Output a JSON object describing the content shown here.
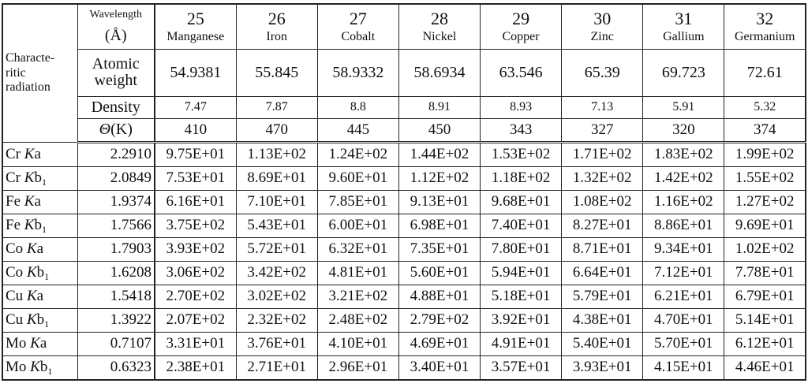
{
  "table": {
    "corner": [
      "Characte-",
      "ritic",
      "radiation"
    ],
    "wavelength_label": "Wavelength",
    "wavelength_unit": "(Å)",
    "atomic_weight_label": "Atomic weight",
    "density_label": "Density",
    "theta_symbol": "Θ",
    "theta_unit": "(K)",
    "elements": [
      {
        "number": "25",
        "name": "Manganese",
        "atomic_weight": "54.9381",
        "density": "7.47",
        "theta": "410"
      },
      {
        "number": "26",
        "name": "Iron",
        "atomic_weight": "55.845",
        "density": "7.87",
        "theta": "470"
      },
      {
        "number": "27",
        "name": "Cobalt",
        "atomic_weight": "58.9332",
        "density": "8.8",
        "theta": "445"
      },
      {
        "number": "28",
        "name": "Nickel",
        "atomic_weight": "58.6934",
        "density": "8.91",
        "theta": "450"
      },
      {
        "number": "29",
        "name": "Copper",
        "atomic_weight": "63.546",
        "density": "8.93",
        "theta": "343"
      },
      {
        "number": "30",
        "name": "Zinc",
        "atomic_weight": "65.39",
        "density": "7.13",
        "theta": "327"
      },
      {
        "number": "31",
        "name": "Gallium",
        "atomic_weight": "69.723",
        "density": "5.91",
        "theta": "320"
      },
      {
        "number": "32",
        "name": "Germanium",
        "atomic_weight": "72.61",
        "density": "5.32",
        "theta": "374"
      }
    ],
    "rows": [
      {
        "element": "Cr",
        "shell": "K",
        "line": "a",
        "wavelength": "2.2910",
        "values": [
          "9.75E+01",
          "1.13E+02",
          "1.24E+02",
          "1.44E+02",
          "1.53E+02",
          "1.71E+02",
          "1.83E+02",
          "1.99E+02"
        ]
      },
      {
        "element": "Cr",
        "shell": "K",
        "line": "b",
        "subscript": "1",
        "wavelength": "2.0849",
        "values": [
          "7.53E+01",
          "8.69E+01",
          "9.60E+01",
          "1.12E+02",
          "1.18E+02",
          "1.32E+02",
          "1.42E+02",
          "1.55E+02"
        ]
      },
      {
        "element": "Fe",
        "shell": "K",
        "line": "a",
        "wavelength": "1.9374",
        "values": [
          "6.16E+01",
          "7.10E+01",
          "7.85E+01",
          "9.13E+01",
          "9.68E+01",
          "1.08E+02",
          "1.16E+02",
          "1.27E+02"
        ]
      },
      {
        "element": "Fe",
        "shell": "K",
        "line": "b",
        "subscript": "1",
        "wavelength": "1.7566",
        "values": [
          "3.75E+02",
          "5.43E+01",
          "6.00E+01",
          "6.98E+01",
          "7.40E+01",
          "8.27E+01",
          "8.86E+01",
          "9.69E+01"
        ]
      },
      {
        "element": "Co",
        "shell": "K",
        "line": "a",
        "wavelength": "1.7903",
        "values": [
          "3.93E+02",
          "5.72E+01",
          "6.32E+01",
          "7.35E+01",
          "7.80E+01",
          "8.71E+01",
          "9.34E+01",
          "1.02E+02"
        ]
      },
      {
        "element": "Co",
        "shell": "K",
        "line": "b",
        "subscript": "1",
        "wavelength": "1.6208",
        "values": [
          "3.06E+02",
          "3.42E+02",
          "4.81E+01",
          "5.60E+01",
          "5.94E+01",
          "6.64E+01",
          "7.12E+01",
          "7.78E+01"
        ]
      },
      {
        "element": "Cu",
        "shell": "K",
        "line": "a",
        "wavelength": "1.5418",
        "values": [
          "2.70E+02",
          "3.02E+02",
          "3.21E+02",
          "4.88E+01",
          "5.18E+01",
          "5.79E+01",
          "6.21E+01",
          "6.79E+01"
        ]
      },
      {
        "element": "Cu",
        "shell": "K",
        "line": "b",
        "subscript": "1",
        "wavelength": "1.3922",
        "values": [
          "2.07E+02",
          "2.32E+02",
          "2.48E+02",
          "2.79E+02",
          "3.92E+01",
          "4.38E+01",
          "4.70E+01",
          "5.14E+01"
        ]
      },
      {
        "element": "Mo",
        "shell": "K",
        "line": "a",
        "wavelength": "0.7107",
        "values": [
          "3.31E+01",
          "3.76E+01",
          "4.10E+01",
          "4.69E+01",
          "4.91E+01",
          "5.40E+01",
          "5.70E+01",
          "6.12E+01"
        ]
      },
      {
        "element": "Mo",
        "shell": "K",
        "line": "b",
        "subscript": "1",
        "wavelength": "0.6323",
        "values": [
          "2.38E+01",
          "2.71E+01",
          "2.96E+01",
          "3.40E+01",
          "3.57E+01",
          "3.93E+01",
          "4.15E+01",
          "4.46E+01"
        ]
      }
    ]
  }
}
